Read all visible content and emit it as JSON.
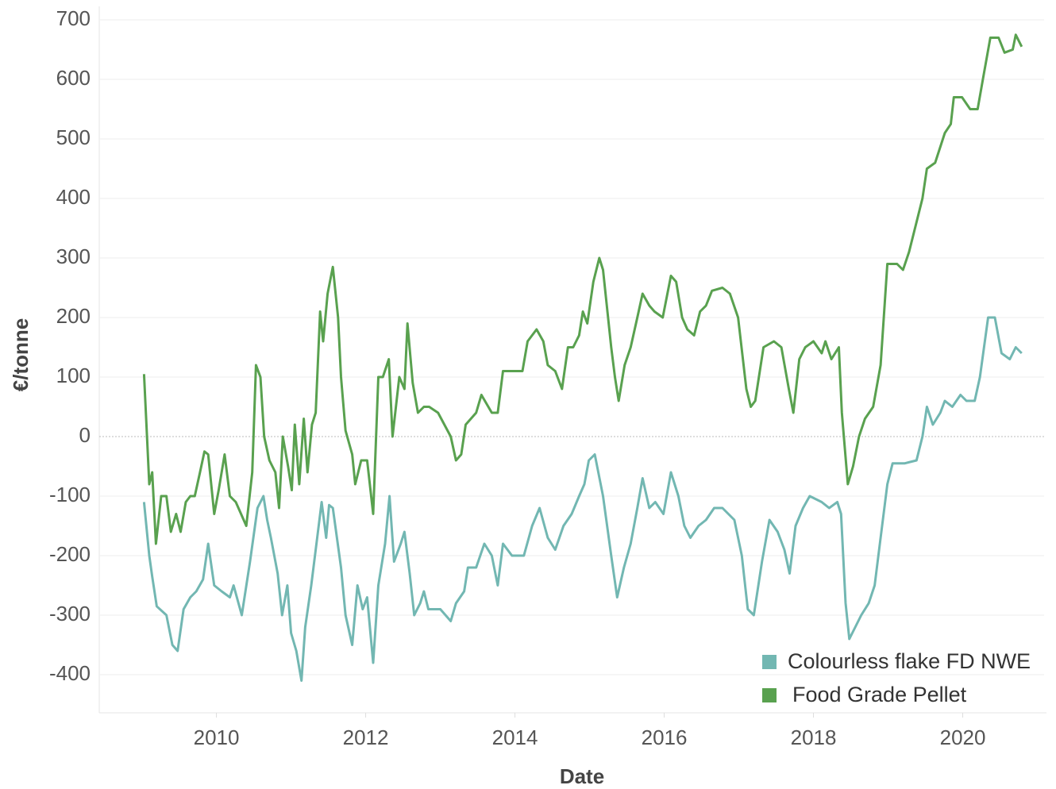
{
  "chart_data": {
    "type": "line",
    "xlabel": "Date",
    "ylabel": "€/tonne",
    "xlim": [
      2008.43,
      2021.09
    ],
    "xticks": [
      2010,
      2012,
      2014,
      2016,
      2018,
      2020
    ],
    "ylim": [
      -460,
      720
    ],
    "yticks": [
      -400,
      -300,
      -200,
      -100,
      0,
      100,
      200,
      300,
      400,
      500,
      600,
      700
    ],
    "grid": true,
    "legend": "lower right",
    "series": [
      {
        "name": "Colourless flake FD NWE",
        "color": "#72b7b2",
        "x": [
          2009.03,
          2009.1,
          2009.14,
          2009.2,
          2009.33,
          2009.41,
          2009.48,
          2009.56,
          2009.65,
          2009.73,
          2009.82,
          2009.89,
          2009.97,
          2010.07,
          2010.18,
          2010.23,
          2010.34,
          2010.45,
          2010.55,
          2010.63,
          2010.68,
          2010.73,
          2010.82,
          2010.88,
          2010.95,
          2011.0,
          2011.07,
          2011.14,
          2011.19,
          2011.27,
          2011.35,
          2011.41,
          2011.47,
          2011.51,
          2011.56,
          2011.67,
          2011.73,
          2011.82,
          2011.89,
          2011.96,
          2012.02,
          2012.1,
          2012.17,
          2012.26,
          2012.32,
          2012.38,
          2012.47,
          2012.52,
          2012.59,
          2012.65,
          2012.73,
          2012.78,
          2012.84,
          2013.0,
          2013.14,
          2013.21,
          2013.32,
          2013.37,
          2013.48,
          2013.59,
          2013.69,
          2013.77,
          2013.84,
          2013.96,
          2014.12,
          2014.23,
          2014.33,
          2014.44,
          2014.54,
          2014.65,
          2014.76,
          2014.86,
          2014.93,
          2014.99,
          2015.07,
          2015.18,
          2015.29,
          2015.37,
          2015.46,
          2015.55,
          2015.64,
          2015.71,
          2015.8,
          2015.88,
          2015.99,
          2016.09,
          2016.19,
          2016.27,
          2016.35,
          2016.46,
          2016.56,
          2016.67,
          2016.78,
          2016.94,
          2017.04,
          2017.12,
          2017.2,
          2017.31,
          2017.41,
          2017.52,
          2017.61,
          2017.68,
          2017.76,
          2017.86,
          2017.95,
          2018.11,
          2018.21,
          2018.32,
          2018.37,
          2018.43,
          2018.48,
          2018.56,
          2018.64,
          2018.74,
          2018.82,
          2018.9,
          2018.99,
          2019.06,
          2019.22,
          2019.38,
          2019.46,
          2019.52,
          2019.6,
          2019.7,
          2019.76,
          2019.86,
          2019.97,
          2020.05,
          2020.16,
          2020.23,
          2020.34,
          2020.43,
          2020.52,
          2020.63,
          2020.71,
          2020.79
        ],
        "values": [
          -110,
          -200,
          -235,
          -285,
          -300,
          -350,
          -360,
          -290,
          -270,
          -260,
          -240,
          -180,
          -250,
          -260,
          -270,
          -250,
          -300,
          -210,
          -120,
          -100,
          -140,
          -170,
          -230,
          -300,
          -250,
          -330,
          -360,
          -410,
          -320,
          -250,
          -170,
          -110,
          -170,
          -115,
          -120,
          -220,
          -300,
          -350,
          -250,
          -290,
          -270,
          -380,
          -250,
          -180,
          -100,
          -210,
          -180,
          -160,
          -230,
          -300,
          -280,
          -260,
          -290,
          -290,
          -310,
          -280,
          -260,
          -220,
          -220,
          -180,
          -200,
          -250,
          -180,
          -200,
          -200,
          -150,
          -120,
          -170,
          -190,
          -150,
          -130,
          -100,
          -80,
          -40,
          -30,
          -100,
          -200,
          -270,
          -220,
          -180,
          -120,
          -70,
          -120,
          -110,
          -130,
          -60,
          -100,
          -150,
          -170,
          -150,
          -140,
          -120,
          -120,
          -140,
          -200,
          -290,
          -300,
          -210,
          -140,
          -160,
          -190,
          -230,
          -150,
          -120,
          -100,
          -110,
          -120,
          -110,
          -130,
          -280,
          -340,
          -320,
          -300,
          -280,
          -250,
          -170,
          -80,
          -45,
          -45,
          -40,
          0,
          50,
          20,
          40,
          60,
          50,
          70,
          60,
          60,
          100,
          200,
          200,
          140,
          130,
          150,
          140
        ]
      },
      {
        "name": "Food Grade Pellet",
        "color": "#59a14f",
        "x": [
          2009.03,
          2009.1,
          2009.14,
          2009.19,
          2009.26,
          2009.33,
          2009.39,
          2009.46,
          2009.52,
          2009.59,
          2009.65,
          2009.71,
          2009.78,
          2009.84,
          2009.89,
          2009.97,
          2010.03,
          2010.11,
          2010.18,
          2010.26,
          2010.33,
          2010.4,
          2010.48,
          2010.53,
          2010.59,
          2010.64,
          2010.71,
          2010.79,
          2010.84,
          2010.89,
          2010.96,
          2011.01,
          2011.05,
          2011.11,
          2011.17,
          2011.22,
          2011.28,
          2011.33,
          2011.39,
          2011.43,
          2011.49,
          2011.56,
          2011.63,
          2011.67,
          2011.73,
          2011.82,
          2011.86,
          2011.94,
          2012.02,
          2012.1,
          2012.17,
          2012.23,
          2012.31,
          2012.36,
          2012.45,
          2012.52,
          2012.56,
          2012.63,
          2012.7,
          2012.78,
          2012.85,
          2012.97,
          2013.14,
          2013.21,
          2013.28,
          2013.34,
          2013.48,
          2013.55,
          2013.69,
          2013.77,
          2013.84,
          2013.96,
          2014.1,
          2014.17,
          2014.29,
          2014.38,
          2014.44,
          2014.54,
          2014.63,
          2014.71,
          2014.78,
          2014.86,
          2014.91,
          2014.97,
          2015.05,
          2015.13,
          2015.18,
          2015.29,
          2015.34,
          2015.39,
          2015.47,
          2015.55,
          2015.64,
          2015.71,
          2015.8,
          2015.87,
          2015.98,
          2016.09,
          2016.16,
          2016.24,
          2016.31,
          2016.4,
          2016.48,
          2016.56,
          2016.64,
          2016.78,
          2016.88,
          2016.99,
          2017.1,
          2017.16,
          2017.22,
          2017.33,
          2017.47,
          2017.57,
          2017.67,
          2017.73,
          2017.81,
          2017.89,
          2018.0,
          2018.11,
          2018.16,
          2018.24,
          2018.34,
          2018.38,
          2018.46,
          2018.53,
          2018.61,
          2018.69,
          2018.8,
          2018.9,
          2018.99,
          2019.12,
          2019.2,
          2019.28,
          2019.38,
          2019.46,
          2019.52,
          2019.63,
          2019.76,
          2019.84,
          2019.88,
          2019.99,
          2020.1,
          2020.2,
          2020.27,
          2020.37,
          2020.48,
          2020.56,
          2020.67,
          2020.71,
          2020.79
        ],
        "values": [
          105,
          -80,
          -60,
          -180,
          -100,
          -100,
          -160,
          -130,
          -160,
          -110,
          -100,
          -100,
          -60,
          -25,
          -30,
          -130,
          -90,
          -30,
          -100,
          -110,
          -130,
          -150,
          -60,
          120,
          100,
          0,
          -40,
          -60,
          -120,
          0,
          -50,
          -90,
          20,
          -80,
          30,
          -60,
          20,
          40,
          210,
          160,
          240,
          285,
          200,
          100,
          10,
          -30,
          -80,
          -40,
          -40,
          -130,
          100,
          100,
          130,
          0,
          100,
          80,
          190,
          90,
          40,
          50,
          50,
          40,
          0,
          -40,
          -30,
          20,
          40,
          70,
          40,
          40,
          110,
          110,
          110,
          160,
          180,
          160,
          120,
          110,
          80,
          150,
          150,
          170,
          210,
          190,
          260,
          300,
          280,
          150,
          100,
          60,
          120,
          150,
          200,
          240,
          220,
          210,
          200,
          270,
          260,
          200,
          180,
          170,
          210,
          220,
          245,
          250,
          240,
          200,
          80,
          50,
          60,
          150,
          160,
          150,
          80,
          40,
          130,
          150,
          160,
          140,
          160,
          130,
          150,
          40,
          -80,
          -50,
          0,
          30,
          50,
          120,
          290,
          290,
          280,
          310,
          360,
          400,
          450,
          460,
          510,
          525,
          570,
          570,
          550,
          550,
          600,
          670,
          670,
          645,
          650,
          675,
          655
        ]
      }
    ]
  }
}
